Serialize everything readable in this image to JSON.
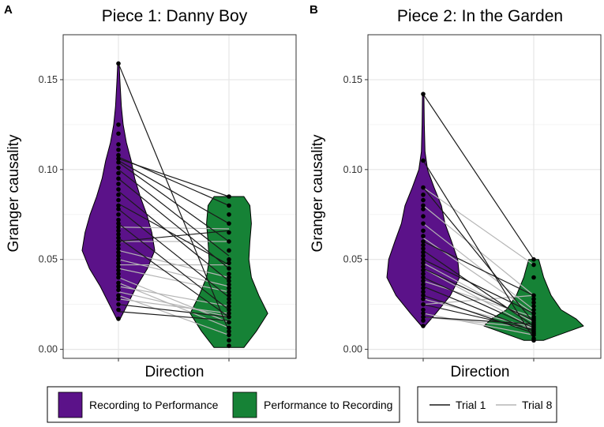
{
  "colors": {
    "recording_to_performance": "#5b1289",
    "performance_to_recording": "#168236",
    "trial1": "#1a1a1a",
    "trial8": "#b5b5b5",
    "grid": "#e6e6e6",
    "point": "#000000"
  },
  "legend": {
    "fill": [
      {
        "label": "Recording to Performance",
        "color_key": "recording_to_performance"
      },
      {
        "label": "Performance to Recording",
        "color_key": "performance_to_recording"
      }
    ],
    "lines": [
      {
        "label": "Trial 1",
        "color_key": "trial1"
      },
      {
        "label": "Trial 8",
        "color_key": "trial8"
      }
    ]
  },
  "chart_data": [
    {
      "panel": "A",
      "type": "violin",
      "title": "Piece 1: Danny Boy",
      "xlabel": "Direction",
      "ylabel": "Granger causality",
      "ylim": [
        -0.005,
        0.175
      ],
      "yticks": [
        "0.00",
        "0.05",
        "0.10",
        "0.15"
      ],
      "violins": [
        {
          "name": "Recording to Performance",
          "color_key": "recording_to_performance",
          "profile": [
            [
              0.017,
              0.05
            ],
            [
              0.025,
              0.25
            ],
            [
              0.035,
              0.5
            ],
            [
              0.045,
              0.8
            ],
            [
              0.055,
              1.0
            ],
            [
              0.065,
              0.92
            ],
            [
              0.075,
              0.78
            ],
            [
              0.085,
              0.6
            ],
            [
              0.095,
              0.45
            ],
            [
              0.105,
              0.35
            ],
            [
              0.115,
              0.22
            ],
            [
              0.125,
              0.13
            ],
            [
              0.135,
              0.08
            ],
            [
              0.15,
              0.04
            ],
            [
              0.159,
              0.02
            ]
          ],
          "points": [
            0.017,
            0.022,
            0.025,
            0.028,
            0.03,
            0.033,
            0.035,
            0.037,
            0.04,
            0.042,
            0.044,
            0.046,
            0.048,
            0.05,
            0.052,
            0.054,
            0.056,
            0.058,
            0.06,
            0.062,
            0.064,
            0.066,
            0.068,
            0.07,
            0.072,
            0.075,
            0.078,
            0.08,
            0.083,
            0.086,
            0.089,
            0.092,
            0.095,
            0.098,
            0.101,
            0.104,
            0.106,
            0.108,
            0.111,
            0.114,
            0.12,
            0.125,
            0.159
          ]
        },
        {
          "name": "Performance to Recording",
          "color_key": "performance_to_recording",
          "profile": [
            [
              0.001,
              0.3
            ],
            [
              0.01,
              0.55
            ],
            [
              0.02,
              0.78
            ],
            [
              0.03,
              0.6
            ],
            [
              0.04,
              0.45
            ],
            [
              0.05,
              0.4
            ],
            [
              0.06,
              0.42
            ],
            [
              0.07,
              0.45
            ],
            [
              0.08,
              0.42
            ],
            [
              0.085,
              0.3
            ]
          ],
          "points": [
            0.002,
            0.005,
            0.008,
            0.01,
            0.012,
            0.015,
            0.018,
            0.02,
            0.022,
            0.024,
            0.026,
            0.028,
            0.03,
            0.032,
            0.034,
            0.036,
            0.038,
            0.04,
            0.042,
            0.045,
            0.048,
            0.05,
            0.055,
            0.06,
            0.065,
            0.07,
            0.075,
            0.08,
            0.085
          ]
        }
      ],
      "pairs": [
        {
          "from": 0.159,
          "to": 0.01,
          "trial": 1
        },
        {
          "from": 0.107,
          "to": 0.08,
          "trial": 1
        },
        {
          "from": 0.106,
          "to": 0.085,
          "trial": 1
        },
        {
          "from": 0.105,
          "to": 0.07,
          "trial": 1
        },
        {
          "from": 0.104,
          "to": 0.06,
          "trial": 1
        },
        {
          "from": 0.1,
          "to": 0.052,
          "trial": 1
        },
        {
          "from": 0.095,
          "to": 0.045,
          "trial": 1
        },
        {
          "from": 0.088,
          "to": 0.038,
          "trial": 1
        },
        {
          "from": 0.081,
          "to": 0.047,
          "trial": 1
        },
        {
          "from": 0.078,
          "to": 0.029,
          "trial": 1
        },
        {
          "from": 0.07,
          "to": 0.022,
          "trial": 1
        },
        {
          "from": 0.062,
          "to": 0.018,
          "trial": 1
        },
        {
          "from": 0.06,
          "to": 0.066,
          "trial": 1
        },
        {
          "from": 0.025,
          "to": 0.018,
          "trial": 1
        },
        {
          "from": 0.021,
          "to": 0.016,
          "trial": 1
        },
        {
          "from": 0.068,
          "to": 0.067,
          "trial": 8
        },
        {
          "from": 0.06,
          "to": 0.06,
          "trial": 8
        },
        {
          "from": 0.055,
          "to": 0.04,
          "trial": 8
        },
        {
          "from": 0.05,
          "to": 0.035,
          "trial": 8
        },
        {
          "from": 0.047,
          "to": 0.047,
          "trial": 8
        },
        {
          "from": 0.045,
          "to": 0.032,
          "trial": 8
        },
        {
          "from": 0.04,
          "to": 0.015,
          "trial": 8
        },
        {
          "from": 0.037,
          "to": 0.012,
          "trial": 8
        },
        {
          "from": 0.035,
          "to": 0.024,
          "trial": 8
        },
        {
          "from": 0.032,
          "to": 0.018,
          "trial": 8
        },
        {
          "from": 0.03,
          "to": 0.008,
          "trial": 8
        },
        {
          "from": 0.028,
          "to": 0.02,
          "trial": 8
        }
      ]
    },
    {
      "panel": "B",
      "type": "violin",
      "title": "Piece 2: In the Garden",
      "xlabel": "Direction",
      "ylabel": "Granger causality",
      "ylim": [
        -0.005,
        0.175
      ],
      "yticks": [
        "0.00",
        "0.05",
        "0.10",
        "0.15"
      ],
      "violins": [
        {
          "name": "Recording to Performance",
          "color_key": "recording_to_performance",
          "profile": [
            [
              0.013,
              0.05
            ],
            [
              0.02,
              0.35
            ],
            [
              0.03,
              0.75
            ],
            [
              0.04,
              1.0
            ],
            [
              0.05,
              0.95
            ],
            [
              0.06,
              0.78
            ],
            [
              0.07,
              0.6
            ],
            [
              0.08,
              0.5
            ],
            [
              0.09,
              0.3
            ],
            [
              0.1,
              0.12
            ],
            [
              0.11,
              0.05
            ],
            [
              0.125,
              0.03
            ],
            [
              0.142,
              0.02
            ]
          ],
          "points": [
            0.013,
            0.016,
            0.018,
            0.02,
            0.022,
            0.025,
            0.028,
            0.03,
            0.032,
            0.034,
            0.036,
            0.038,
            0.04,
            0.042,
            0.044,
            0.046,
            0.048,
            0.05,
            0.052,
            0.054,
            0.056,
            0.058,
            0.06,
            0.063,
            0.066,
            0.07,
            0.074,
            0.078,
            0.08,
            0.083,
            0.086,
            0.09,
            0.105,
            0.142
          ]
        },
        {
          "name": "Performance to Recording",
          "color_key": "performance_to_recording",
          "profile": [
            [
              0.005,
              0.2
            ],
            [
              0.01,
              0.7
            ],
            [
              0.013,
              1.0
            ],
            [
              0.017,
              0.85
            ],
            [
              0.022,
              0.55
            ],
            [
              0.03,
              0.35
            ],
            [
              0.04,
              0.2
            ],
            [
              0.045,
              0.15
            ],
            [
              0.05,
              0.1
            ]
          ],
          "points": [
            0.005,
            0.006,
            0.008,
            0.009,
            0.01,
            0.011,
            0.012,
            0.013,
            0.014,
            0.015,
            0.016,
            0.017,
            0.018,
            0.02,
            0.022,
            0.024,
            0.026,
            0.028,
            0.03,
            0.04,
            0.047,
            0.05
          ]
        }
      ],
      "pairs": [
        {
          "from": 0.142,
          "to": 0.05,
          "trial": 1
        },
        {
          "from": 0.105,
          "to": 0.006,
          "trial": 1
        },
        {
          "from": 0.09,
          "to": 0.015,
          "trial": 1
        },
        {
          "from": 0.06,
          "to": 0.03,
          "trial": 1
        },
        {
          "from": 0.055,
          "to": 0.013,
          "trial": 1
        },
        {
          "from": 0.05,
          "to": 0.02,
          "trial": 1
        },
        {
          "from": 0.045,
          "to": 0.016,
          "trial": 1
        },
        {
          "from": 0.04,
          "to": 0.012,
          "trial": 1
        },
        {
          "from": 0.035,
          "to": 0.01,
          "trial": 1
        },
        {
          "from": 0.03,
          "to": 0.009,
          "trial": 1
        },
        {
          "from": 0.025,
          "to": 0.011,
          "trial": 1
        },
        {
          "from": 0.018,
          "to": 0.014,
          "trial": 1
        },
        {
          "from": 0.09,
          "to": 0.047,
          "trial": 8
        },
        {
          "from": 0.08,
          "to": 0.03,
          "trial": 8
        },
        {
          "from": 0.07,
          "to": 0.022,
          "trial": 8
        },
        {
          "from": 0.062,
          "to": 0.02,
          "trial": 8
        },
        {
          "from": 0.048,
          "to": 0.015,
          "trial": 8
        },
        {
          "from": 0.045,
          "to": 0.012,
          "trial": 8
        },
        {
          "from": 0.038,
          "to": 0.018,
          "trial": 8
        },
        {
          "from": 0.028,
          "to": 0.012,
          "trial": 8
        },
        {
          "from": 0.025,
          "to": 0.03,
          "trial": 8
        },
        {
          "from": 0.02,
          "to": 0.008,
          "trial": 8
        },
        {
          "from": 0.018,
          "to": 0.012,
          "trial": 8
        }
      ]
    }
  ]
}
